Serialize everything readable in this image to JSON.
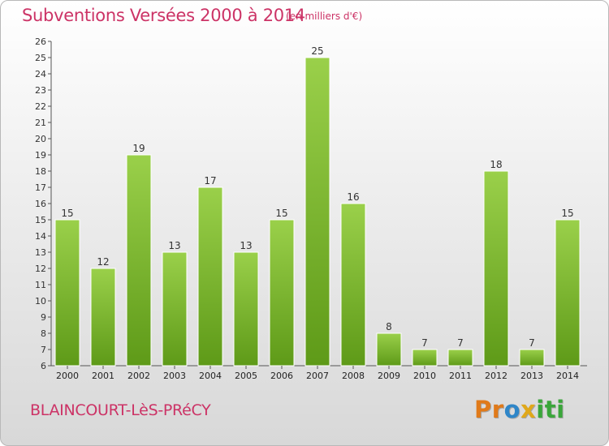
{
  "chart_data": {
    "type": "bar",
    "title": "Subventions Versées 2000 à 2014",
    "subtitle": "(en milliers d'€)",
    "categories": [
      "2000",
      "2001",
      "2002",
      "2003",
      "2004",
      "2005",
      "2006",
      "2007",
      "2008",
      "2009",
      "2010",
      "2011",
      "2012",
      "2013",
      "2014"
    ],
    "values": [
      15,
      12,
      19,
      13,
      17,
      13,
      15,
      25,
      16,
      8,
      7,
      7,
      18,
      7,
      15
    ],
    "ylim": [
      6,
      26
    ],
    "yticks": [
      6,
      7,
      8,
      9,
      10,
      11,
      12,
      13,
      14,
      15,
      16,
      17,
      18,
      19,
      20,
      21,
      22,
      23,
      24,
      25,
      26
    ],
    "grid": false,
    "bar_color": "#7dbb2a"
  },
  "footer": {
    "commune": "BLAINCOURT-LèS-PRéCY",
    "logo_letters": [
      "P",
      "r",
      "o",
      "x",
      "i",
      "t",
      "i"
    ],
    "logo_colors": [
      "#e07a1a",
      "#e07a1a",
      "#2f86c8",
      "#e0a81a",
      "#3aa63a",
      "#3aa63a",
      "#3aa63a"
    ]
  }
}
